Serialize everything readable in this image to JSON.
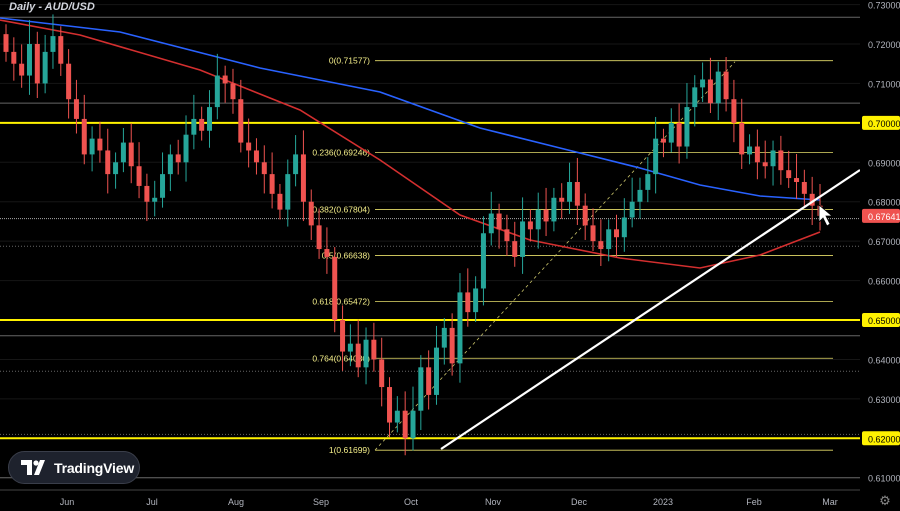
{
  "header": {
    "title": "Daily - AUD/USD"
  },
  "logo": {
    "text": "TradingView"
  },
  "settings_icon": "gear-icon",
  "colors": {
    "background": "#000000",
    "up": "#26a69a",
    "down": "#ef5350",
    "ma_fast": "#d32f2f",
    "ma_slow": "#2962ff",
    "level": "#fff200",
    "trendline": "#ffffff",
    "price_tag": "#ef5350"
  },
  "chart_data": {
    "type": "candlestick",
    "title": "Daily - AUD/USD",
    "ylim": [
      0.606,
      0.731
    ],
    "y_ticks": [
      "0.73000",
      "0.72000",
      "0.71000",
      "0.70000",
      "0.69000",
      "0.68000",
      "0.67000",
      "0.66000",
      "0.65000",
      "0.64000",
      "0.63000",
      "0.62000",
      "0.61000"
    ],
    "x_ticks": [
      "Jun",
      "Jul",
      "Aug",
      "Sep",
      "Oct",
      "Nov",
      "Dec",
      "2023",
      "Feb",
      "Mar"
    ],
    "last_price": "0.67641",
    "horizontal_levels": [
      {
        "value": 0.7,
        "label": "0.70000",
        "style": "thick"
      },
      {
        "value": 0.65,
        "label": "0.65000",
        "style": "thick"
      },
      {
        "value": 0.62,
        "label": "0.62000",
        "style": "thick"
      }
    ],
    "fibonacci": [
      {
        "ratio": "0",
        "value": 0.71577,
        "label": "0(0.71577)"
      },
      {
        "ratio": "0.236",
        "value": 0.69246,
        "label": "0.236(0.69246)"
      },
      {
        "ratio": "0.382",
        "value": 0.67804,
        "label": "0.382(0.67804)"
      },
      {
        "ratio": "0.5",
        "value": 0.66638,
        "label": "0.5(0.66638)"
      },
      {
        "ratio": "0.618",
        "value": 0.65472,
        "label": "0.618(0.65472)"
      },
      {
        "ratio": "0.764",
        "value": 0.6403,
        "label": "0.764(0.64030)"
      },
      {
        "ratio": "1",
        "value": 0.61699,
        "label": "1(0.61699)"
      }
    ],
    "trendline": {
      "from": {
        "date": "Oct 13",
        "value": 0.617
      },
      "to": {
        "date": "Mar 10",
        "value": 0.688
      }
    },
    "series_close": [
      0.718,
      0.715,
      0.712,
      0.72,
      0.71,
      0.718,
      0.722,
      0.715,
      0.706,
      0.701,
      0.692,
      0.696,
      0.693,
      0.687,
      0.69,
      0.695,
      0.689,
      0.684,
      0.68,
      0.681,
      0.687,
      0.692,
      0.69,
      0.697,
      0.701,
      0.698,
      0.704,
      0.712,
      0.71,
      0.706,
      0.695,
      0.693,
      0.69,
      0.687,
      0.682,
      0.678,
      0.687,
      0.692,
      0.68,
      0.674,
      0.668,
      0.666,
      0.65,
      0.642,
      0.644,
      0.638,
      0.645,
      0.64,
      0.633,
      0.624,
      0.627,
      0.62,
      0.627,
      0.638,
      0.631,
      0.643,
      0.648,
      0.639,
      0.657,
      0.652,
      0.658,
      0.672,
      0.677,
      0.673,
      0.67,
      0.666,
      0.675,
      0.673,
      0.678,
      0.675,
      0.681,
      0.68,
      0.685,
      0.679,
      0.674,
      0.67,
      0.668,
      0.673,
      0.671,
      0.676,
      0.68,
      0.683,
      0.687,
      0.696,
      0.695,
      0.7,
      0.694,
      0.704,
      0.709,
      0.711,
      0.705,
      0.713,
      0.706,
      0.7,
      0.692,
      0.694,
      0.69,
      0.689,
      0.693,
      0.688,
      0.686,
      0.685,
      0.682,
      0.679,
      0.6764
    ]
  }
}
